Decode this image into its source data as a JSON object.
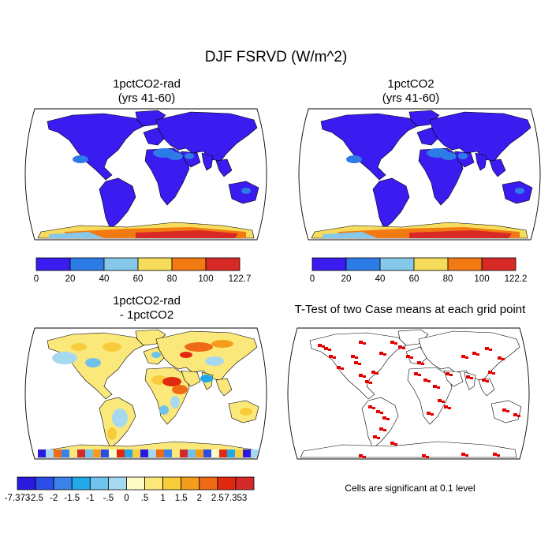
{
  "title": "DJF FSRVD (W/m^2)",
  "panels": [
    {
      "id": "a",
      "title_line1": "1pctCO2-rad",
      "title_line2": "(yrs 41-60)"
    },
    {
      "id": "b",
      "title_line1": "1pctCO2",
      "title_line2": "(yrs 41-60)"
    },
    {
      "id": "c",
      "title_line1": "1pctCO2-rad",
      "title_line2": "- 1pctCO2"
    },
    {
      "id": "d",
      "title_line1": "T-Test of two Case means at each grid point",
      "title_line2": ""
    }
  ],
  "colorbars": {
    "abs_a": {
      "labels": [
        "0",
        "20",
        "40",
        "60",
        "80",
        "100",
        "122.7"
      ],
      "colors": [
        "#3b1cf0",
        "#2d7be6",
        "#86c8ea",
        "#f6dc5a",
        "#f37a13",
        "#d72a26"
      ]
    },
    "abs_b": {
      "labels": [
        "0",
        "20",
        "40",
        "60",
        "80",
        "100",
        "122.2"
      ],
      "colors": [
        "#3b1cf0",
        "#2d7be6",
        "#86c8ea",
        "#f6dc5a",
        "#f37a13",
        "#d72a26"
      ]
    },
    "diff": {
      "labels": [
        "-7.373",
        "-2.5",
        "-2",
        "-1.5",
        "-1",
        "-.5",
        "0",
        ".5",
        "1",
        "1.5",
        "2",
        "2.5",
        "7.353"
      ],
      "colors": [
        "#2a1ae0",
        "#2b4ee8",
        "#3a82e8",
        "#22a8e8",
        "#6fc2ec",
        "#a6d9f0",
        "#fdfbc6",
        "#fbe87a",
        "#f8cc3a",
        "#f59d1a",
        "#ef6a14",
        "#e02a10",
        "#d32a2a"
      ]
    }
  },
  "note": "Cells are significant at 0.1 level",
  "colors": {
    "land_low": "#3b1cf0",
    "land_mid": "#2d7be6",
    "antarctic_high": "#d72a26",
    "significant": "#e60000"
  }
}
